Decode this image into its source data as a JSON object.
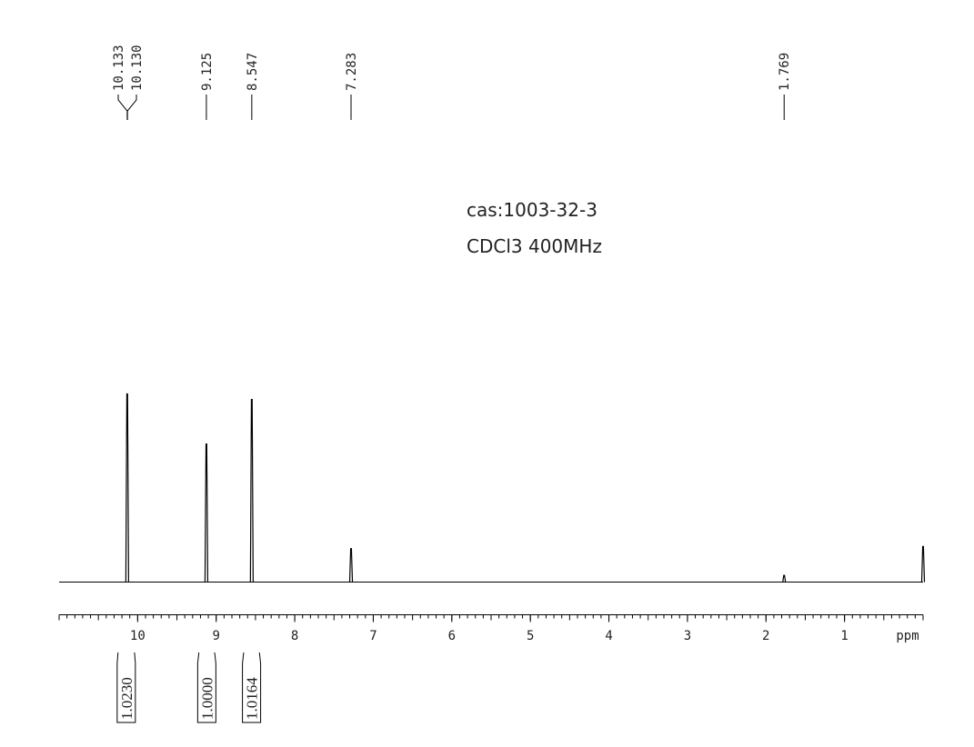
{
  "chart_data": {
    "type": "nmr",
    "annotations": [
      "cas:1003-32-3",
      "CDCl3 400MHz"
    ],
    "x_label": "ppm",
    "xlim": [
      11,
      0
    ],
    "xticks": [
      10,
      9,
      8,
      7,
      6,
      5,
      4,
      3,
      2,
      1
    ],
    "ylim": [
      0,
      180
    ],
    "x": [
      10.133,
      9.125,
      8.547,
      7.283,
      1.769,
      0
    ],
    "values": [
      169,
      124,
      164,
      30,
      6,
      32
    ],
    "color": "#000000",
    "peak_labels": [
      {
        "value": 10.133,
        "label": "10.133"
      },
      {
        "value": 10.13,
        "label": "10.130"
      },
      9.125,
      8.547,
      7.283,
      1.769
    ],
    "integrals": [
      {
        "value": 1.023,
        "label": "1.0230",
        "range": [
          10.25,
          10.04
        ]
      },
      {
        "value": 1,
        "label": "1.0000",
        "range": [
          9.22,
          9.02
        ]
      },
      {
        "value": 1.0164,
        "range": [
          8.65,
          8.45
        ]
      }
    ]
  }
}
